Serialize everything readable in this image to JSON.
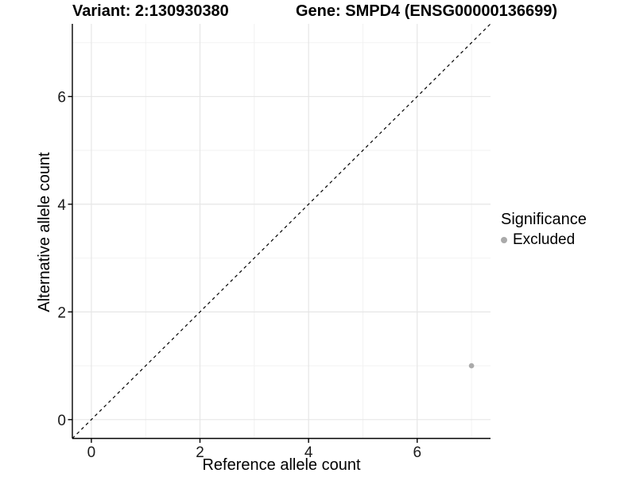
{
  "title": {
    "left": "Variant: 2:130930380",
    "right": "Gene: SMPD4 (ENSG00000136699)"
  },
  "chart_data": {
    "type": "scatter",
    "title": "Variant: 2:130930380 / Gene: SMPD4 (ENSG00000136699)",
    "xlabel": "Reference allele count",
    "ylabel": "Alternative allele count",
    "xlim": [
      -0.35,
      7.35
    ],
    "ylim": [
      -0.35,
      7.35
    ],
    "x_major_ticks": [
      0,
      2,
      4,
      6
    ],
    "y_major_ticks": [
      0,
      2,
      4,
      6
    ],
    "x_minor_gridlines": [
      1,
      3,
      5,
      7
    ],
    "y_minor_gridlines": [
      1,
      3,
      5,
      7
    ],
    "grid": true,
    "points": [
      {
        "x": 7,
        "y": 1,
        "series": "Excluded"
      }
    ],
    "reference_line": {
      "slope": 1,
      "intercept": 0,
      "style": "dashed"
    },
    "legend": {
      "title": "Significance",
      "position": "right",
      "items": [
        {
          "label": "Excluded",
          "color": "#aaaaaa"
        }
      ]
    },
    "colors": {
      "point": "#aaaaaa",
      "grid_major": "#e6e6e6",
      "grid_minor": "#f2f2f2",
      "axis_line": "#000000",
      "tick_text": "#1a1a1a",
      "reference_line": "#000000",
      "background": "#ffffff"
    }
  }
}
